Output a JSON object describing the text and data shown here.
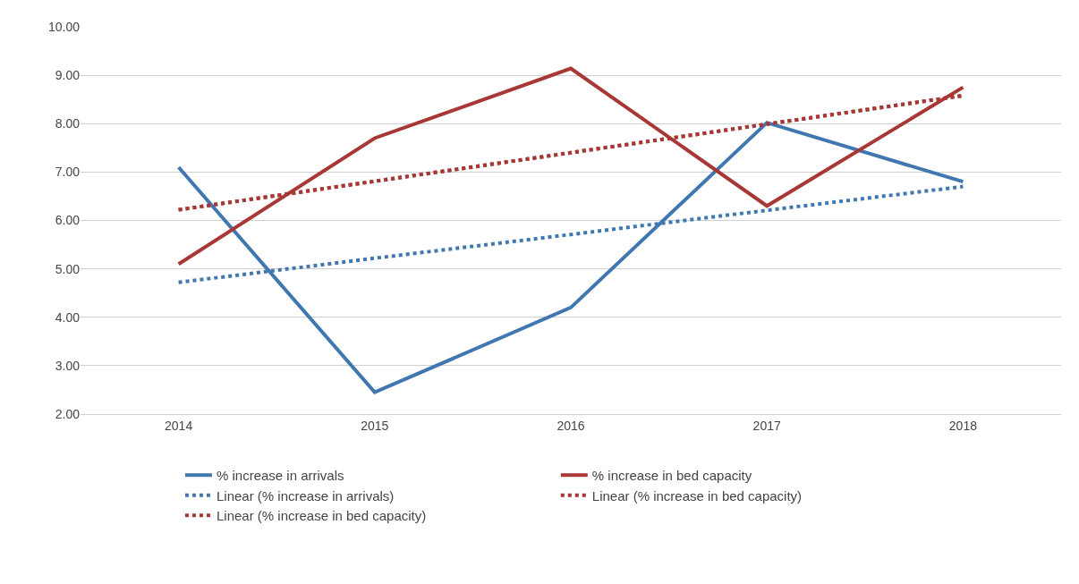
{
  "chart_data": {
    "type": "line",
    "categories": [
      "2014",
      "2015",
      "2016",
      "2017",
      "2018"
    ],
    "ylim": [
      2,
      10
    ],
    "yticks": [
      {
        "value": 2,
        "label": "2.00"
      },
      {
        "value": 3,
        "label": "3.00"
      },
      {
        "value": 4,
        "label": "4.00"
      },
      {
        "value": 5,
        "label": "5.00"
      },
      {
        "value": 6,
        "label": "6.00"
      },
      {
        "value": 7,
        "label": "7.00"
      },
      {
        "value": 8,
        "label": "8.00"
      },
      {
        "value": 9,
        "label": "9.00"
      },
      {
        "value": 10,
        "label": "10.00"
      }
    ],
    "grid": "y",
    "legend": "bottom",
    "marker": "none",
    "line_style": "solid",
    "series": [
      {
        "name": "% increase in arrivals",
        "color": "#4177b0",
        "values": [
          7.1,
          2.45,
          4.2,
          8.02,
          6.8
        ]
      },
      {
        "name": "% increase in bed capacity",
        "color": "#a83836",
        "values": [
          5.1,
          7.7,
          9.14,
          6.3,
          8.75
        ]
      },
      {
        "name": "Linear (% increase in arrivals)",
        "color": "#4177b0",
        "line_style": "dotted",
        "values": [
          4.72,
          5.22,
          5.71,
          6.21,
          6.7
        ]
      },
      {
        "name": "Linear (% increase in bed capacity)",
        "color": "#a83836",
        "line_style": "dotted",
        "values": [
          6.22,
          6.81,
          7.4,
          7.99,
          8.58
        ]
      },
      {
        "name": "Linear (% increase in bed capacity)",
        "color": "#a83836",
        "line_style": "dotted",
        "values": [
          6.22,
          6.81,
          7.4,
          7.99,
          8.58
        ]
      }
    ]
  }
}
